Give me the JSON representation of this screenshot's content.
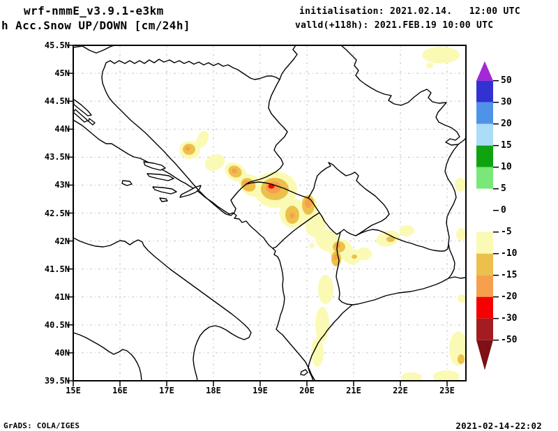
{
  "header": {
    "model_title": "wrf-nmmE_v3.9.1-e3km",
    "variable_title": "h Acc.Snow UP/DOWN [cm/24h]",
    "init_label": "initialisation: 2021.02.14.   12:00 UTC",
    "valid_label": "valld(+118h): 2021.FEB.19 10:00 UTC"
  },
  "map": {
    "lat_labels": [
      "45.5N",
      "45N",
      "44.5N",
      "44N",
      "43.5N",
      "43N",
      "42.5N",
      "42N",
      "41.5N",
      "41N",
      "40.5N",
      "40N",
      "39.5N"
    ],
    "lon_labels": [
      "15E",
      "16E",
      "17E",
      "18E",
      "19E",
      "20E",
      "21E",
      "22E",
      "23E"
    ],
    "grid_color": "#c3c3c3",
    "border_color": "#000000",
    "shade_colors": {
      "light": "#fafab4",
      "moderate": "#ecc04b",
      "heavy": "#f6a04e",
      "extreme": "#f60000"
    }
  },
  "colorbar": {
    "tick_labels": [
      "50",
      "30",
      "20",
      "15",
      "10",
      "5",
      "0",
      "-5",
      "-10",
      "-15",
      "-20",
      "-30",
      "-50"
    ],
    "over_color": "#a329d6",
    "under_color": "#7e1016",
    "segment_colors": [
      "#3232d3",
      "#4f93e8",
      "#abdcf8",
      "#0fa30f",
      "#79e879",
      "#ffffff",
      "#ffffff",
      "#fafab4",
      "#ecc04b",
      "#f6a04e",
      "#f60000",
      "#a51b22"
    ]
  },
  "footer": {
    "credit": "GrADS: COLA/IGES",
    "created": "2021-02-14-22:02"
  }
}
